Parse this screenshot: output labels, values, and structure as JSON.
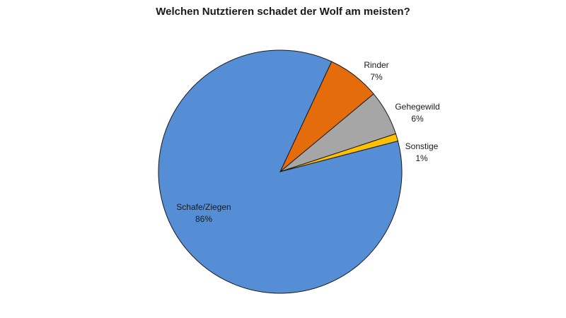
{
  "chart_data": {
    "type": "pie",
    "title": "Welchen Nutztieren schadet der Wolf am meisten?",
    "slices": [
      {
        "label": "Schafe/Ziegen",
        "value": 86,
        "value_label": "86%",
        "color": "#558ED5"
      },
      {
        "label": "Rinder",
        "value": 7,
        "value_label": "7%",
        "color": "#E46C0A"
      },
      {
        "label": "Gehegewild",
        "value": 6,
        "value_label": "6%",
        "color": "#A6A6A6"
      },
      {
        "label": "Sonstige",
        "value": 1,
        "value_label": "1%",
        "color": "#FFC000"
      }
    ],
    "legend": "none"
  }
}
